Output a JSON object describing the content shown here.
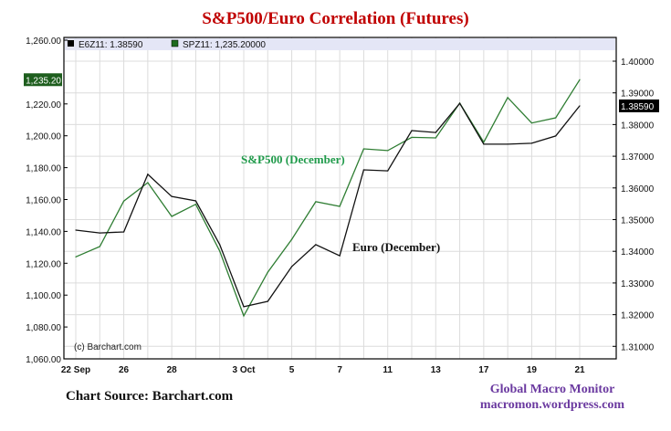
{
  "chart_data": {
    "type": "line",
    "title": "S&P500/Euro Correlation (Futures)",
    "x_tick_labels": [
      "22 Sep",
      "26",
      "28",
      "3 Oct",
      "5",
      "7",
      "11",
      "13",
      "17",
      "19",
      "21"
    ],
    "x_tick_indices": [
      0,
      2,
      4,
      7,
      9,
      11,
      13,
      15,
      17,
      19,
      21
    ],
    "left_axis": {
      "ylim": [
        1060,
        1260
      ],
      "ticks": [
        "1,060.00",
        "1,080.00",
        "1,100.00",
        "1,120.00",
        "1,140.00",
        "1,160.00",
        "1,180.00",
        "1,200.00",
        "1,220.00",
        "1,260.00"
      ],
      "tick_values": [
        1060,
        1080,
        1100,
        1120,
        1140,
        1160,
        1180,
        1200,
        1220,
        1260
      ],
      "last_value_label": "1,235.20"
    },
    "right_axis": {
      "ylim": [
        1.306,
        1.4085
      ],
      "ticks": [
        "1.31000",
        "1.32000",
        "1.33000",
        "1.34000",
        "1.35000",
        "1.36000",
        "1.37000",
        "1.38000",
        "1.39000",
        "1.40000"
      ],
      "tick_values": [
        1.31,
        1.32,
        1.33,
        1.34,
        1.35,
        1.36,
        1.37,
        1.38,
        1.39,
        1.4
      ],
      "last_value_label": "1.38590"
    },
    "grid": true,
    "legend_position": "top",
    "series": [
      {
        "name": "SPZ11: 1,235.20000",
        "annotation": "S&P500 (December)",
        "axis": "left",
        "color": "#2e7d32",
        "values": [
          1124,
          1130.5,
          1159,
          1170.6,
          1149.4,
          1157,
          1127.6,
          1087,
          1114.4,
          1135,
          1158.6,
          1155.7,
          1191.8,
          1190.7,
          1199,
          1198.7,
          1220.5,
          1196,
          1224,
          1208,
          1211.3,
          1235.2
        ]
      },
      {
        "name": "E6Z11: 1.38590",
        "annotation": "Euro (December)",
        "axis": "right",
        "color": "#111111",
        "values": [
          1.3467,
          1.3458,
          1.3461,
          1.3643,
          1.3573,
          1.3559,
          1.3421,
          1.3225,
          1.3242,
          1.3352,
          1.3421,
          1.3386,
          1.3657,
          1.3654,
          1.3781,
          1.3775,
          1.3867,
          1.3738,
          1.3738,
          1.3741,
          1.3764,
          1.3859
        ]
      }
    ],
    "watermark": "(c) Barchart.com"
  },
  "footer": {
    "source": "Chart Source:  Barchart.com",
    "brand_line1": "Global Macro Monitor",
    "brand_line2": "macromon.wordpress.com"
  }
}
